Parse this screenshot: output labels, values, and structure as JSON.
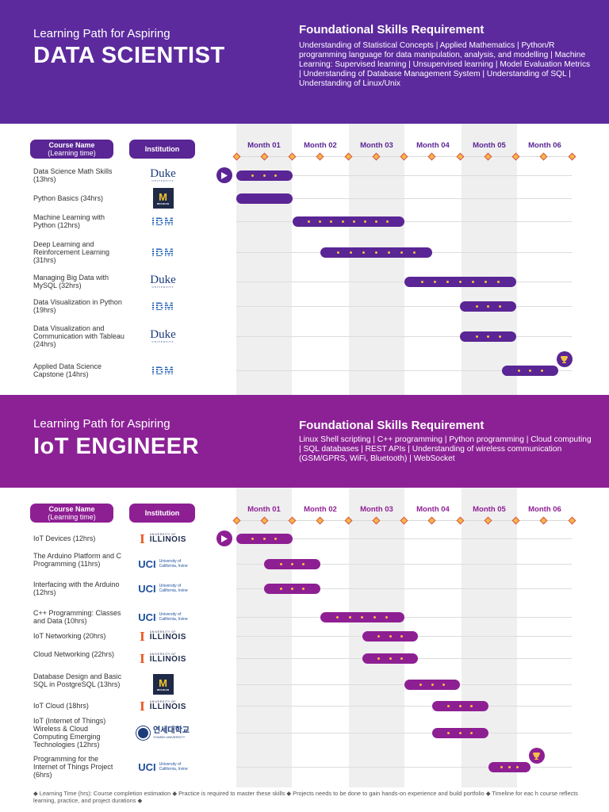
{
  "colors": {
    "ds_banner": "#5c2a9d",
    "ds_accent": "#5a2594",
    "iot_banner": "#8c2196",
    "iot_accent": "#8e1f93",
    "dot": "#f5c242",
    "month_col": "#efefef"
  },
  "months": [
    "Month 01",
    "Month 02",
    "Month 03",
    "Month 04",
    "Month 05",
    "Month 06"
  ],
  "header": {
    "course_l1": "Course Name",
    "course_l2": "(Learning time)",
    "institution": "Institution"
  },
  "ds": {
    "sub": "Learning Path for Aspiring",
    "title": "DATA SCIENTIST",
    "fs_title": "Foundational Skills Requirement",
    "fs_text": "Understanding of Statistical Concepts | Applied Mathematics | Python/R programming language for data manipulation, analysis, and modelling | Machine Learning: Supervised learning | Unsupervised learning | Model Evaluation Metrics | Understanding of Database Management System | Understanding of SQL | Understanding of Linux/Unix",
    "courses": [
      {
        "name": "Data Science Math Skills (13hrs)",
        "inst": "duke-logo",
        "start": 0,
        "end": 1,
        "dots": 3
      },
      {
        "name": "Python Basics (34hrs)",
        "inst": "michigan-logo",
        "start": 0,
        "end": 1,
        "dots": 0
      },
      {
        "name": "Machine Learning with Python (12hrs)",
        "inst": "ibm-logo",
        "start": 1,
        "end": 3,
        "dots": 8
      },
      {
        "name": "Deep Learning and Reinforcement Learning (31hrs)",
        "inst": "ibm-logo",
        "start": 1.5,
        "end": 3.5,
        "dots": 7
      },
      {
        "name": "Managing Big Data with MySQL (32hrs)",
        "inst": "duke-logo",
        "start": 3,
        "end": 5,
        "dots": 7
      },
      {
        "name": "Data Visualization in Python (19hrs)",
        "inst": "ibm-logo",
        "start": 4,
        "end": 5,
        "dots": 3
      },
      {
        "name": "Data Visualization and Communication with Tableau (24hrs)",
        "inst": "duke-logo",
        "start": 4,
        "end": 5,
        "dots": 3
      },
      {
        "name": "Applied Data Science Capstone (14hrs)",
        "inst": "ibm-logo",
        "start": 4.75,
        "end": 5.75,
        "dots": 3
      }
    ]
  },
  "iot": {
    "sub": "Learning Path for Aspiring",
    "title": "IoT ENGINEER",
    "fs_title": "Foundational Skills Requirement",
    "fs_text": "Linux Shell scripting | C++ programming | Python programming | Cloud computing | SQL databases | REST APIs | Understanding of wireless communication (GSM/GPRS, WiFi, Bluetooth) | WebSocket",
    "courses": [
      {
        "name": "IoT Devices (12hrs)",
        "inst": "illinois-logo",
        "start": 0,
        "end": 1,
        "dots": 3
      },
      {
        "name": "The Arduino Platform and C Programming (11hrs)",
        "inst": "uci-logo",
        "start": 0.5,
        "end": 1.5,
        "dots": 3
      },
      {
        "name": "Interfacing with the Arduino (12hrs)",
        "inst": "uci-logo",
        "start": 0.5,
        "end": 1.5,
        "dots": 3
      },
      {
        "name": "C++ Programming: Classes and Data (10hrs)",
        "inst": "uci-logo",
        "start": 1.5,
        "end": 3,
        "dots": 5
      },
      {
        "name": "IoT Networking (20hrs)",
        "inst": "illinois-logo",
        "start": 2.25,
        "end": 3.25,
        "dots": 3
      },
      {
        "name": "Cloud Networking (22hrs)",
        "inst": "illinois-logo",
        "start": 2.25,
        "end": 3.25,
        "dots": 3
      },
      {
        "name": "Database Design and Basic SQL in PostgreSQL (13hrs)",
        "inst": "michigan-logo",
        "start": 3,
        "end": 4,
        "dots": 3
      },
      {
        "name": "IoT Cloud (18hrs)",
        "inst": "illinois-logo",
        "start": 3.5,
        "end": 4.5,
        "dots": 3
      },
      {
        "name": "IoT (Internet of Things) Wireless & Cloud Computing Emerging Technologies (12hrs)",
        "inst": "yonsei-logo",
        "start": 3.5,
        "end": 4.5,
        "dots": 3
      },
      {
        "name": "Programming for the Internet of Things Project (6hrs)",
        "inst": "uci-logo",
        "start": 4.5,
        "end": 5.25,
        "dots": 3
      }
    ]
  },
  "logos": {
    "duke": "Duke",
    "duke_sub": "UNIVERSITY",
    "ibm": "IBM",
    "mich": "M",
    "mich_sub": "MICHIGAN",
    "ill_sub": "UNIVERSITY OF",
    "ill": "ILLINOIS",
    "uci": "UCI",
    "uci_sub1": "University of",
    "uci_sub2": "California, Irvine",
    "yon": "연세대학교",
    "yon_sub": "YONSEI UNIVERSITY"
  },
  "footnote": "◆ Learning Time (hrs): Course completion estimation ◆ Practice is required to master these skills ◆ Projects needs to be done to gain hands-on experience and  build portfolio ◆ Timeline for eac h course reflects learning, practice, and project durations ◆"
}
